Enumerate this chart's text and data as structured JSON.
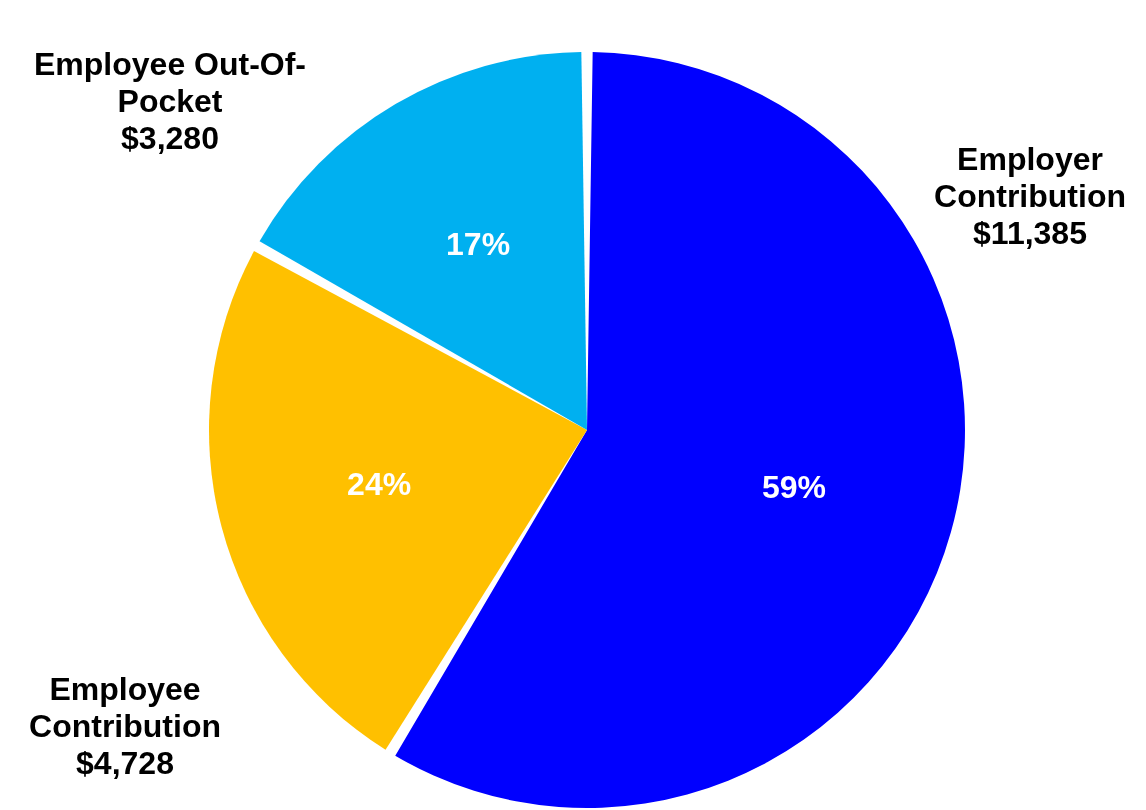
{
  "chart_data": {
    "type": "pie",
    "categories": [
      "Employer Contribution",
      "Employee Contribution",
      "Employee Out-Of-Pocket"
    ],
    "values": [
      11385,
      4728,
      3280
    ],
    "colors": [
      "#0000ff",
      "#ffc000",
      "#00b0f0"
    ],
    "value_labels": [
      "$11,385",
      "$4,728",
      "$3,280"
    ],
    "annotations": [
      {
        "text": "59%",
        "x": "Employer Contribution"
      },
      {
        "text": "24%",
        "x": "Employee Contribution"
      },
      {
        "text": "17%",
        "x": "Employee Out-Of-Pocket"
      }
    ]
  }
}
